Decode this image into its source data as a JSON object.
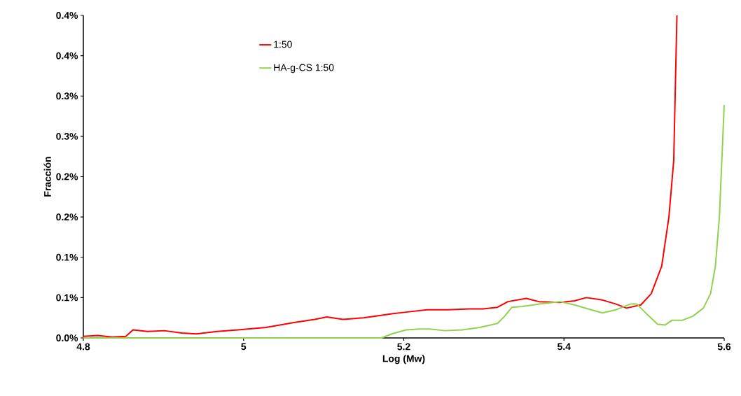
{
  "chart_data": {
    "type": "line",
    "xlabel": "Log (Mw)",
    "ylabel": "Fracción",
    "xlim": [
      4.8,
      5.6
    ],
    "xticks": [
      4.8,
      5,
      5.2,
      5.4,
      5.6
    ],
    "ylim": [
      0,
      0.4
    ],
    "yticks": [
      {
        "value": 0,
        "label": "0.0%"
      },
      {
        "value": 0.05,
        "label": "0.1%"
      },
      {
        "value": 0.1,
        "label": "0.1%"
      },
      {
        "value": 0.15,
        "label": "0.2%"
      },
      {
        "value": 0.2,
        "label": "0.2%"
      },
      {
        "value": 0.25,
        "label": "0.3%"
      },
      {
        "value": 0.3,
        "label": "0.3%"
      },
      {
        "value": 0.35,
        "label": "0.4%"
      },
      {
        "value": 0.4,
        "label": "0.4%"
      }
    ],
    "legend": "top left",
    "grid": false,
    "series": [
      {
        "name": "1:50",
        "color": "#ff0000",
        "x": [
          4.8,
          4.818,
          4.836,
          4.853,
          4.862,
          4.88,
          4.901,
          4.923,
          4.941,
          4.967,
          4.993,
          5.028,
          5.063,
          5.089,
          5.104,
          5.124,
          5.15,
          5.185,
          5.203,
          5.229,
          5.255,
          5.282,
          5.299,
          5.317,
          5.33,
          5.353,
          5.369,
          5.395,
          5.413,
          5.428,
          5.448,
          5.465,
          5.478,
          5.496,
          5.509,
          5.522,
          5.531,
          5.537,
          5.541
        ],
        "values": [
          0.002,
          0.003,
          0.001,
          0.002,
          0.01,
          0.008,
          0.009,
          0.006,
          0.005,
          0.008,
          0.01,
          0.013,
          0.019,
          0.023,
          0.026,
          0.023,
          0.025,
          0.03,
          0.032,
          0.035,
          0.035,
          0.036,
          0.036,
          0.038,
          0.045,
          0.049,
          0.045,
          0.044,
          0.046,
          0.05,
          0.047,
          0.042,
          0.037,
          0.041,
          0.055,
          0.089,
          0.15,
          0.22,
          0.4
        ]
      },
      {
        "name": "HA-g-CS 1:50",
        "color": "#92d050",
        "x": [
          4.8,
          5.172,
          5.185,
          5.203,
          5.22,
          5.233,
          5.251,
          5.273,
          5.295,
          5.317,
          5.326,
          5.335,
          5.348,
          5.369,
          5.395,
          5.413,
          5.43,
          5.448,
          5.465,
          5.483,
          5.491,
          5.504,
          5.517,
          5.526,
          5.535,
          5.548,
          5.561,
          5.574,
          5.583,
          5.589,
          5.594,
          5.597,
          5.6
        ],
        "values": [
          0,
          0,
          0.005,
          0.01,
          0.011,
          0.011,
          0.009,
          0.01,
          0.013,
          0.018,
          0.027,
          0.038,
          0.039,
          0.042,
          0.045,
          0.041,
          0.036,
          0.031,
          0.035,
          0.042,
          0.042,
          0.029,
          0.017,
          0.016,
          0.022,
          0.022,
          0.027,
          0.037,
          0.055,
          0.089,
          0.15,
          0.219,
          0.289
        ]
      }
    ]
  }
}
